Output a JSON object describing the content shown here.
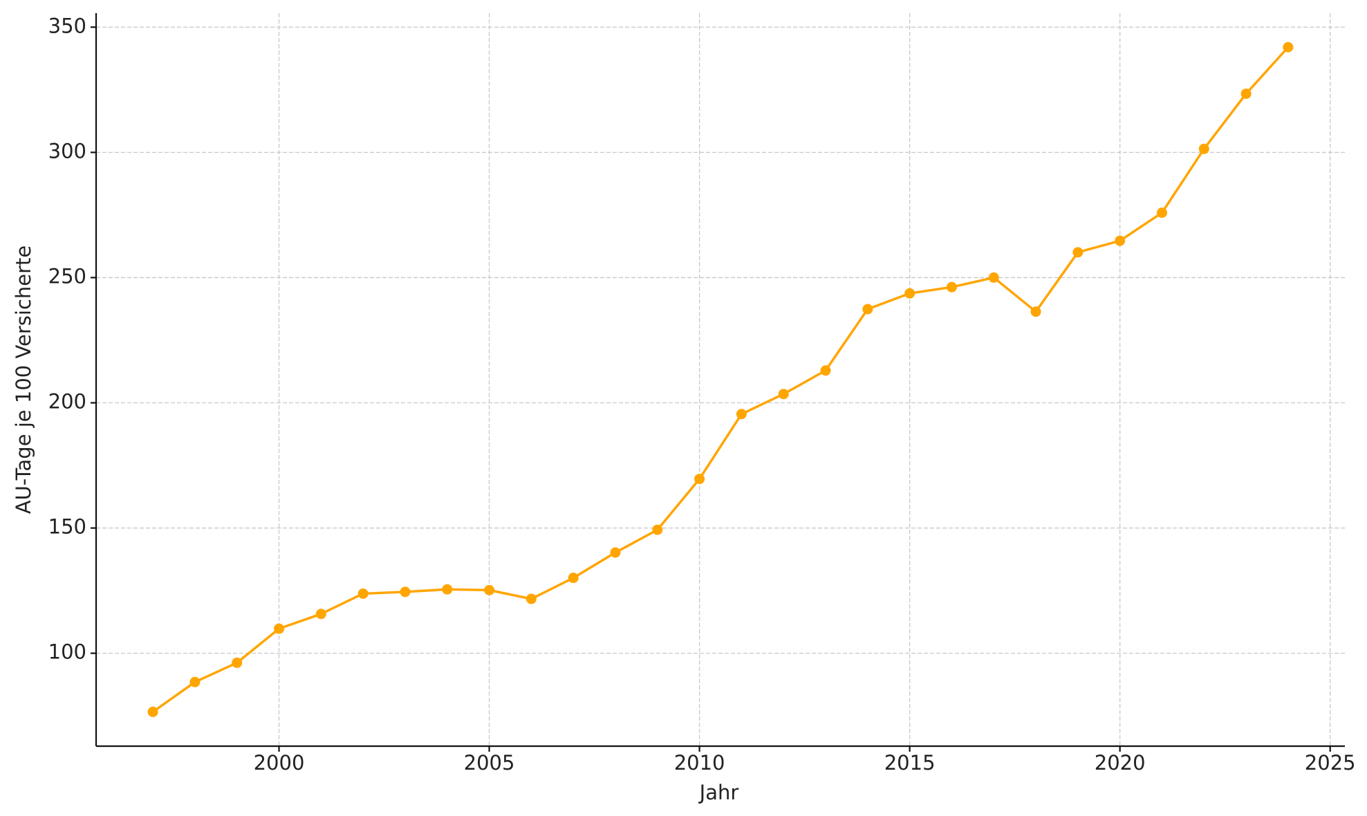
{
  "chart_data": {
    "type": "line",
    "x_label": "Jahr",
    "y_label": "AU-Tage je 100 Versicherte",
    "x": [
      1997,
      1998,
      1999,
      2000,
      2001,
      2002,
      2003,
      2004,
      2005,
      2006,
      2007,
      2008,
      2009,
      2010,
      2011,
      2012,
      2013,
      2014,
      2015,
      2016,
      2017,
      2018,
      2019,
      2020,
      2021,
      2022,
      2023,
      2024
    ],
    "series": [
      {
        "color": "#ffa500",
        "values": [
          76.6,
          88.5,
          96.2,
          109.8,
          115.7,
          123.8,
          124.5,
          125.5,
          125.2,
          121.7,
          130.1,
          140.2,
          149.3,
          169.6,
          195.5,
          203.5,
          212.9,
          237.4,
          243.7,
          246.2,
          250.0,
          236.4,
          260.1,
          264.7,
          275.9,
          301.4,
          323.4,
          342.0
        ]
      }
    ],
    "xlim": [
      1995.65,
      2025.35
    ],
    "ylim": [
      62.9,
      355.6
    ],
    "xticks": [
      2000,
      2005,
      2010,
      2015,
      2020,
      2025
    ],
    "yticks": [
      100,
      150,
      200,
      250,
      300,
      350
    ],
    "grid": true
  }
}
